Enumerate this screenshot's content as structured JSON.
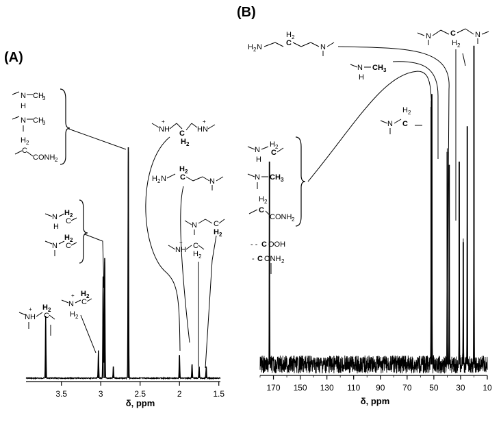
{
  "chart_data": [
    {
      "panel_label": "(A)",
      "type": "line",
      "xlabel": "δ, ppm",
      "xlim": [
        3.95,
        1.48
      ],
      "x_reversed": true,
      "x_ticks": [
        3.5,
        3.0,
        2.5,
        2.0,
        1.5
      ],
      "x_tick_labels": [
        "3.5",
        "3",
        "2.5",
        "2",
        "1.5"
      ],
      "grid": false,
      "peaks": [
        {
          "x": 3.7,
          "height": 0.27
        },
        {
          "x": 3.03,
          "height": 0.12
        },
        {
          "x": 2.97,
          "height": 0.44
        },
        {
          "x": 2.95,
          "height": 0.52
        },
        {
          "x": 2.84,
          "height": 0.05
        },
        {
          "x": 2.65,
          "height": 1.0
        },
        {
          "x": 2.0,
          "height": 0.1
        },
        {
          "x": 1.84,
          "height": 0.06
        },
        {
          "x": 1.75,
          "height": 0.05
        },
        {
          "x": 1.66,
          "height": 0.05
        }
      ],
      "assignments": [
        {
          "group": "-N-CH3 (methylamine / dimethylamine) and -CH2-CONH2",
          "x": 2.65
        },
        {
          "group": "-NH-CH2- and -N-CH2- (alpha to N)",
          "x": 2.96
        },
        {
          "group": "-NH2+-CH2-",
          "x": 3.03
        },
        {
          "group": "-NH+-CH2-",
          "x": 3.7
        },
        {
          "group": "central CH2 of protonated propylene diamine",
          "x": 2.0
        },
        {
          "group": "central CH2 of H2N-CH2CH2CH2-N",
          "x": 1.84
        },
        {
          "group": "-NH+-CH2-CH2-",
          "x": 1.75
        },
        {
          "group": "-N-CH2-CH2-",
          "x": 1.66
        }
      ]
    },
    {
      "panel_label": "(B)",
      "type": "line",
      "xlabel": "δ, ppm",
      "xlim": [
        180,
        10
      ],
      "x_reversed": true,
      "x_ticks": [
        170,
        150,
        130,
        110,
        90,
        70,
        50,
        30,
        10
      ],
      "x_tick_labels": [
        "170",
        "150",
        "130",
        "110",
        "90",
        "70",
        "50",
        "30",
        "10"
      ],
      "grid": false,
      "peaks": [
        {
          "x": 173,
          "height": 0.63
        },
        {
          "x": 52,
          "height": 0.8
        },
        {
          "x": 51.5,
          "height": 0.84
        },
        {
          "x": 40,
          "height": 0.66
        },
        {
          "x": 38.5,
          "height": 0.62
        },
        {
          "x": 31,
          "height": 0.63
        },
        {
          "x": 28,
          "height": 0.38
        },
        {
          "x": 25,
          "height": 0.74
        },
        {
          "x": 20,
          "height": 0.99
        }
      ],
      "assignments": [
        {
          "group": "COOH / CONH2",
          "x": 173
        },
        {
          "group": "-NH-CH2-, -N-CH3, -CH2-CONH2",
          "x": 51
        },
        {
          "group": "-N-CH2-",
          "x": 52
        },
        {
          "group": "H2N-CH2CH2CH2-N central C",
          "x": 31
        },
        {
          "group": "-NH-CH3",
          "x": 38
        },
        {
          "group": "-N-CH2-CH2-CH2-N- central C",
          "x": 25
        }
      ]
    }
  ]
}
